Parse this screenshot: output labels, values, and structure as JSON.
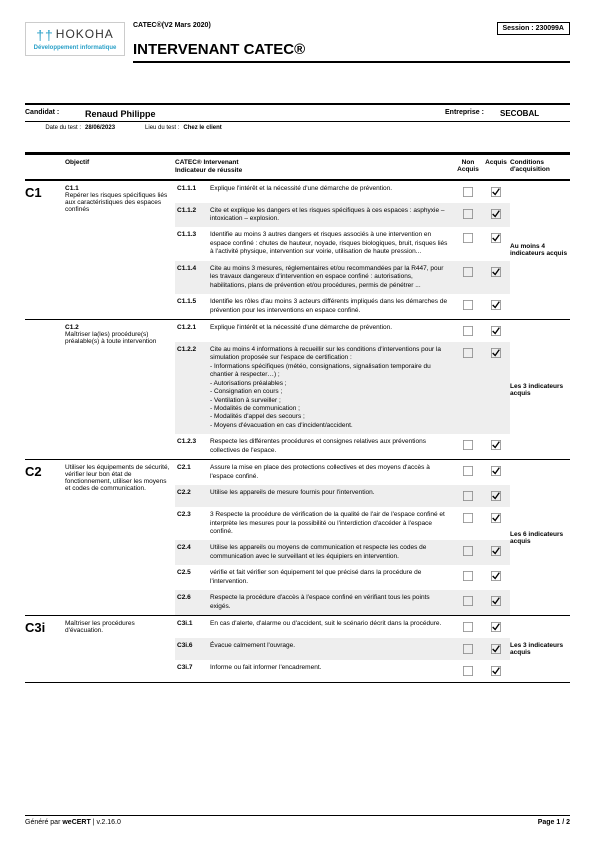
{
  "header": {
    "logo_brand": "HOKOHA",
    "logo_sub": "Développement informatique",
    "version": "CATEC®(V2 Mars 2020)",
    "session_label": "Session :",
    "session_val": "230099A",
    "title": "INTERVENANT CATEC®"
  },
  "candidate": {
    "label": "Candidat :",
    "name": "Renaud Philippe",
    "ent_label": "Entreprise :",
    "ent_val": "SECOBAL",
    "date_label": "Date du test :",
    "date_val": "28/06/2023",
    "lieu_label": "Lieu du test :",
    "lieu_val": "Chez le client"
  },
  "cols": {
    "obj": "Objectif",
    "ind": "CATEC® Intervenant\nIndicateur de réussite",
    "na": "Non Acquis",
    "aq": "Acquis",
    "cond": "Conditions d'acquisition"
  },
  "sections": [
    {
      "id": "C1",
      "groups": [
        {
          "obj_id": "C1.1",
          "obj_txt": "Repérer les risques spécifiques liés aux caractéristiques des espaces confinés",
          "cond": "Au moins 4 indicateurs acquis",
          "rows": [
            {
              "id": "C1.1.1",
              "txt": "Explique l'intérêt et la nécessité d'une démarche de prévention.",
              "na": false,
              "aq": true,
              "shade": false
            },
            {
              "id": "C1.1.2",
              "txt": "Cite et explique les dangers et les risques spécifiques à ces espaces : asphyxie – intoxication – explosion.",
              "na": false,
              "aq": true,
              "shade": true
            },
            {
              "id": "C1.1.3",
              "txt": "Identifie au moins 3 autres dangers et risques associés à une intervention en espace confiné : chutes de hauteur, noyade, risques biologiques, bruit, risques liés à l'activité physique, intervention sur voirie, utilisation de haute pression...",
              "na": false,
              "aq": true,
              "shade": false
            },
            {
              "id": "C1.1.4",
              "txt": "Cite au moins 3 mesures, réglementaires et/ou recommandées par la R447, pour les travaux dangereux d'intervention en espace confiné : autorisations, habilitations, plans de prévention et/ou procédures, permis de pénétrer ...",
              "na": false,
              "aq": true,
              "shade": true
            },
            {
              "id": "C1.1.5",
              "txt": "Identifie les rôles d'au moins 3 acteurs différents impliqués dans les démarches de prévention pour les interventions en espace confiné.",
              "na": false,
              "aq": true,
              "shade": false
            }
          ]
        },
        {
          "obj_id": "C1.2",
          "obj_txt": "Maîtriser la(les) procédure(s) préalable(s) à toute intervention",
          "cond": "Les 3 indicateurs acquis",
          "rows": [
            {
              "id": "C1.2.1",
              "txt": "Explique l'intérêt et la nécessité d'une démarche de prévention.",
              "na": false,
              "aq": true,
              "shade": false
            },
            {
              "id": "C1.2.2",
              "txt": "Cite au moins 4 informations à recueillir sur les conditions d'interventions pour la simulation proposée sur l'espace de certification :\n- Informations spécifiques (météo, consignations, signalisation temporaire du chantier à respecter…) ;\n- Autorisations préalables ;\n- Consignation en cours ;\n- Ventilation à surveiller ;\n- Modalités de communication ;\n- Modalités d'appel des secours ;\n- Moyens d'évacuation en cas d'incident/accident.",
              "na": false,
              "aq": true,
              "shade": true
            },
            {
              "id": "C1.2.3",
              "txt": "Respecte les différentes procédures et consignes relatives aux préventions collectives de l'espace.",
              "na": false,
              "aq": true,
              "shade": false
            }
          ]
        }
      ]
    },
    {
      "id": "C2",
      "groups": [
        {
          "obj_id": "",
          "obj_txt": "Utiliser les équipements de sécurité, vérifier leur bon état de fonctionnement, utiliser les moyens et codes de communication.",
          "cond": "Les 6 indicateurs acquis",
          "rows": [
            {
              "id": "C2.1",
              "txt": "Assure la mise en place des protections collectives et des moyens d'accès à l'espace confiné.",
              "na": false,
              "aq": true,
              "shade": false
            },
            {
              "id": "C2.2",
              "txt": "Utilise les appareils de mesure fournis pour l'intervention.",
              "na": false,
              "aq": true,
              "shade": true
            },
            {
              "id": "C2.3",
              "txt": "3 Respecte la procédure de vérification de la qualité de l'air de l'espace confiné et interprète les mesures pour la possibilité ou l'interdiction d'accéder à l'espace confiné.",
              "na": false,
              "aq": true,
              "shade": false
            },
            {
              "id": "C2.4",
              "txt": "Utilise les appareils ou moyens de communication et respecte les codes de communication avec le surveillant et les équipiers en intervention.",
              "na": false,
              "aq": true,
              "shade": true
            },
            {
              "id": "C2.5",
              "txt": "vérifie et fait vérifier son équipement tel que précisé dans la procédure de l'intervention.",
              "na": false,
              "aq": true,
              "shade": false
            },
            {
              "id": "C2.6",
              "txt": "Respecte la procédure d'accès à l'espace confiné en vérifiant tous les points exigés.",
              "na": false,
              "aq": true,
              "shade": true
            }
          ]
        }
      ]
    },
    {
      "id": "C3i",
      "groups": [
        {
          "obj_id": "",
          "obj_txt": "Maîtriser les procédures d'évacuation.",
          "cond": "Les 3 indicateurs acquis",
          "rows": [
            {
              "id": "C3i.1",
              "txt": "En cas d'alerte, d'alarme ou d'accident, suit le scénario décrit dans la procédure.",
              "na": false,
              "aq": true,
              "shade": false
            },
            {
              "id": "C3i.6",
              "txt": "Évacue calmement l'ouvrage.",
              "na": false,
              "aq": true,
              "shade": true
            },
            {
              "id": "C3i.7",
              "txt": "Informe ou fait informer l'encadrement.",
              "na": false,
              "aq": true,
              "shade": false
            }
          ]
        }
      ]
    }
  ],
  "footer": {
    "gen_label": "Généré par ",
    "gen_app": "weCERT",
    "gen_ver": " | v.2.16.0",
    "page": "Page 1 / 2"
  }
}
